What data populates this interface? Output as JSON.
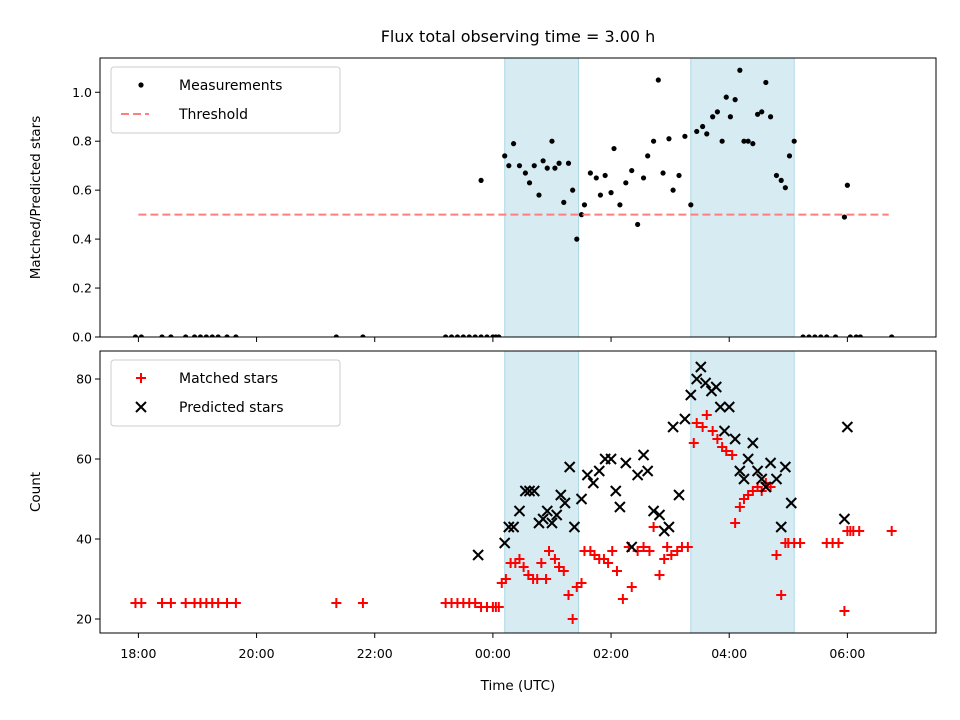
{
  "chart_data": [
    {
      "type": "scatter",
      "title": "Flux total observing time = 3.00 h",
      "ylabel": "Matched/Predicted stars",
      "xlabel": "",
      "xlim": [
        -6.65,
        7.5
      ],
      "ylim": [
        0,
        1.14
      ],
      "yticks": [
        0.0,
        0.2,
        0.4,
        0.6,
        0.8,
        1.0
      ],
      "ytick_labels": [
        "0.0",
        "0.2",
        "0.4",
        "0.6",
        "0.8",
        "1.0"
      ],
      "grid": false,
      "legend_position": "upper-left",
      "shaded_intervals": [
        [
          0.2,
          1.45
        ],
        [
          3.35,
          5.1
        ]
      ],
      "shade_color": "#add8e6",
      "series": [
        {
          "name": "Measurements",
          "marker": "dot",
          "color": "#000000",
          "x": [
            -6.05,
            -5.95,
            -5.6,
            -5.45,
            -5.2,
            -5.05,
            -4.95,
            -4.85,
            -4.75,
            -4.65,
            -4.5,
            -4.35,
            -2.65,
            -2.2,
            -0.8,
            -0.7,
            -0.6,
            -0.5,
            -0.4,
            -0.3,
            -0.2,
            -0.1,
            0.0,
            0.05,
            0.1,
            -0.2,
            0.2,
            0.27,
            0.35,
            0.45,
            0.55,
            0.62,
            0.7,
            0.78,
            0.85,
            0.92,
            1.0,
            1.05,
            1.12,
            1.2,
            1.28,
            1.35,
            1.42,
            1.5,
            1.55,
            1.65,
            1.75,
            1.82,
            1.9,
            2.0,
            2.05,
            2.15,
            2.25,
            2.35,
            2.45,
            2.55,
            2.62,
            2.72,
            2.8,
            2.88,
            2.98,
            3.05,
            3.15,
            3.25,
            3.35,
            3.45,
            3.55,
            3.62,
            3.72,
            3.8,
            3.88,
            3.95,
            4.02,
            4.1,
            4.18,
            4.25,
            4.32,
            4.4,
            4.48,
            4.55,
            4.62,
            4.7,
            4.8,
            4.88,
            4.95,
            5.02,
            5.1,
            5.25,
            5.35,
            5.45,
            5.55,
            5.65,
            5.8,
            5.95,
            6.0,
            6.05,
            6.15,
            6.22,
            6.75
          ],
          "y": [
            0,
            0,
            0,
            0,
            0,
            0,
            0,
            0,
            0,
            0,
            0,
            0,
            0,
            0,
            0,
            0,
            0,
            0,
            0,
            0,
            0,
            0,
            0,
            0,
            0,
            0.64,
            0.74,
            0.7,
            0.79,
            0.7,
            0.67,
            0.63,
            0.7,
            0.58,
            0.72,
            0.69,
            0.8,
            0.69,
            0.71,
            0.55,
            0.71,
            0.6,
            0.4,
            0.5,
            0.54,
            0.67,
            0.65,
            0.58,
            0.66,
            0.59,
            0.77,
            0.54,
            0.63,
            0.68,
            0.46,
            0.65,
            0.74,
            0.8,
            1.05,
            0.67,
            0.81,
            0.6,
            0.66,
            0.82,
            0.54,
            0.84,
            0.86,
            0.83,
            0.9,
            0.92,
            0.8,
            0.98,
            0.9,
            0.97,
            1.09,
            0.8,
            0.8,
            0.79,
            0.91,
            0.92,
            1.04,
            0.9,
            0.66,
            0.64,
            0.61,
            0.74,
            0.8,
            0,
            0,
            0,
            0,
            0,
            0,
            0.49,
            0.62,
            0,
            0,
            0,
            0
          ]
        },
        {
          "name": "Threshold",
          "marker": "dashed-line",
          "color": "#ff7f7f",
          "x": [
            -6.0,
            6.7
          ],
          "y": [
            0.5,
            0.5
          ]
        }
      ]
    },
    {
      "type": "scatter",
      "title": "",
      "ylabel": "Count",
      "xlabel": "Time (UTC)",
      "xlim": [
        -6.65,
        7.5
      ],
      "ylim": [
        16.5,
        87
      ],
      "yticks": [
        20,
        40,
        60,
        80
      ],
      "ytick_labels": [
        "20",
        "40",
        "60",
        "80"
      ],
      "xticks": [
        -6,
        -4,
        -2,
        0,
        2,
        4,
        6
      ],
      "xtick_labels": [
        "18:00",
        "20:00",
        "22:00",
        "00:00",
        "02:00",
        "04:00",
        "06:00"
      ],
      "grid": false,
      "legend_position": "upper-left",
      "shaded_intervals": [
        [
          0.2,
          1.45
        ],
        [
          3.35,
          5.1
        ]
      ],
      "shade_color": "#add8e6",
      "series": [
        {
          "name": "Matched stars",
          "marker": "plus",
          "color": "#ff0000",
          "x": [
            -6.05,
            -5.95,
            -5.6,
            -5.45,
            -5.2,
            -5.05,
            -4.95,
            -4.85,
            -4.75,
            -4.65,
            -4.5,
            -4.35,
            -2.65,
            -2.2,
            -0.8,
            -0.7,
            -0.6,
            -0.5,
            -0.4,
            -0.3,
            -0.2,
            -0.1,
            0.0,
            0.05,
            0.1,
            0.15,
            0.22,
            0.3,
            0.38,
            0.45,
            0.52,
            0.6,
            0.68,
            0.75,
            0.82,
            0.9,
            0.95,
            1.05,
            1.12,
            1.2,
            1.28,
            1.35,
            1.42,
            1.5,
            1.55,
            1.65,
            1.72,
            1.8,
            1.88,
            1.95,
            2.02,
            2.1,
            2.2,
            2.3,
            2.35,
            2.45,
            2.55,
            2.65,
            2.72,
            2.82,
            2.9,
            2.95,
            3.02,
            3.12,
            3.2,
            3.3,
            3.4,
            3.45,
            3.55,
            3.62,
            3.72,
            3.8,
            3.88,
            3.95,
            4.05,
            4.1,
            4.18,
            4.25,
            4.32,
            4.4,
            4.48,
            4.55,
            4.62,
            4.7,
            4.8,
            4.88,
            4.95,
            5.0,
            5.1,
            5.2,
            5.65,
            5.75,
            5.85,
            5.95,
            6.0,
            6.05,
            6.1,
            6.2,
            6.75
          ],
          "y": [
            24,
            24,
            24,
            24,
            24,
            24,
            24,
            24,
            24,
            24,
            24,
            24,
            24,
            24,
            24,
            24,
            24,
            24,
            24,
            24,
            23,
            23,
            23,
            23,
            23,
            29,
            30,
            34,
            34,
            35,
            33,
            31,
            30,
            30,
            34,
            30,
            37,
            35,
            33,
            32,
            26,
            20,
            28,
            29,
            37,
            37,
            36,
            35,
            35,
            34,
            37,
            32,
            25,
            38,
            28,
            37,
            38,
            37,
            43,
            31,
            35,
            38,
            36,
            37,
            38,
            38,
            64,
            69,
            68,
            71,
            67,
            65,
            63,
            62,
            61,
            44,
            48,
            50,
            51,
            52,
            53,
            52,
            54,
            53,
            36,
            26,
            39,
            39,
            39,
            39,
            39,
            39,
            39,
            22,
            42,
            42,
            42,
            42,
            42
          ]
        },
        {
          "name": "Predicted stars",
          "marker": "x",
          "color": "#000000",
          "x": [
            -0.25,
            0.2,
            0.27,
            0.35,
            0.45,
            0.55,
            0.62,
            0.7,
            0.78,
            0.85,
            0.92,
            1.0,
            1.08,
            1.15,
            1.22,
            1.3,
            1.38,
            1.5,
            1.6,
            1.7,
            1.8,
            1.9,
            2.0,
            2.08,
            2.15,
            2.25,
            2.35,
            2.45,
            2.55,
            2.62,
            2.72,
            2.82,
            2.9,
            2.98,
            3.05,
            3.15,
            3.25,
            3.35,
            3.45,
            3.52,
            3.6,
            3.7,
            3.78,
            3.85,
            3.92,
            4.0,
            4.1,
            4.18,
            4.25,
            4.32,
            4.4,
            4.48,
            4.55,
            4.62,
            4.7,
            4.8,
            4.88,
            4.95,
            5.05,
            5.95,
            6.0
          ],
          "y": [
            36,
            39,
            43,
            43,
            47,
            52,
            52,
            52,
            44,
            45,
            47,
            44,
            46,
            51,
            49,
            58,
            43,
            50,
            56,
            54,
            57,
            60,
            60,
            52,
            48,
            59,
            38,
            56,
            61,
            57,
            47,
            46,
            42,
            43,
            68,
            51,
            70,
            76,
            80,
            83,
            79,
            77,
            78,
            73,
            67,
            73,
            65,
            57,
            55,
            60,
            64,
            57,
            55,
            53,
            59,
            55,
            43,
            58,
            49,
            45,
            68
          ]
        }
      ]
    }
  ]
}
